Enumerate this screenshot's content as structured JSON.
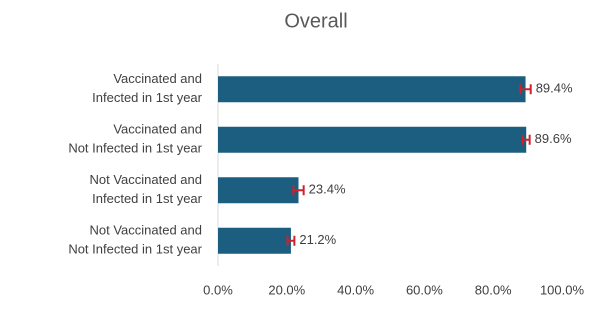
{
  "chart_data": {
    "type": "barh",
    "title": "Overall",
    "categories": [
      [
        "Vaccinated and",
        "Infected in 1st year"
      ],
      [
        "Vaccinated and",
        "Not Infected in 1st year"
      ],
      [
        "Not Vaccinated and",
        "Infected in 1st year"
      ],
      [
        "Not Vaccinated and",
        "Not Infected in 1st year"
      ]
    ],
    "values": [
      89.4,
      89.6,
      23.4,
      21.2
    ],
    "value_labels": [
      "89.4%",
      "89.6%",
      "23.4%",
      "21.2%"
    ],
    "errors": [
      1.5,
      1,
      1.5,
      1
    ],
    "color": "#1b5e7f",
    "error_color": "#d0202a",
    "xlim": [
      0,
      100
    ],
    "xticks": [
      {
        "value": 0,
        "label": "0.0%"
      },
      {
        "value": 20,
        "label": "20.0%"
      },
      {
        "value": 40,
        "label": "40.0%"
      },
      {
        "value": 60,
        "label": "60.0%"
      },
      {
        "value": 80,
        "label": "80.0%"
      },
      {
        "value": 100,
        "label": "100.0%"
      }
    ]
  }
}
